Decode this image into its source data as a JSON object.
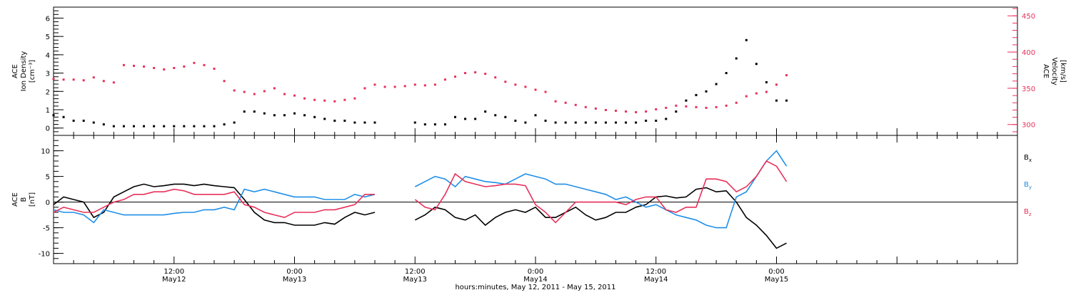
{
  "colors": {
    "black": "#000000",
    "density": "#000000",
    "velocity": "#e8305a",
    "bx": "#000000",
    "by": "#1f8fe8",
    "bz": "#e8305a",
    "axis": "#000000"
  },
  "x_axis": {
    "title": "hours:minutes, May 12, 2011 - May 15, 2011",
    "range_hours": [
      0,
      96
    ],
    "ticks": [
      {
        "h": 12,
        "time": "12:00",
        "day": "May12"
      },
      {
        "h": 24,
        "time": "0:00",
        "day": "May13"
      },
      {
        "h": 36,
        "time": "12:00",
        "day": "May13"
      },
      {
        "h": 48,
        "time": "0:00",
        "day": "May14"
      },
      {
        "h": 60,
        "time": "12:00",
        "day": "May14"
      },
      {
        "h": 72,
        "time": "0:00",
        "day": "May15"
      }
    ]
  },
  "chart_data": [
    {
      "type": "scatter",
      "panel": "top",
      "left_axis": {
        "label_lines": [
          "ACE",
          "Ion Density"
        ],
        "unit": "[cm⁻³]",
        "range": [
          -0.4,
          6.6
        ],
        "ticks": [
          0,
          1,
          2,
          3,
          4,
          5,
          6
        ]
      },
      "right_axis": {
        "label_lines": [
          "ACE",
          "Velocity"
        ],
        "unit": "[km/s]",
        "range": [
          285,
          462
        ],
        "ticks": [
          300,
          350,
          400,
          450
        ]
      },
      "series": [
        {
          "key": "density",
          "axis": "left",
          "x": [
            0,
            1,
            2,
            3,
            4,
            5,
            6,
            7,
            8,
            9,
            10,
            11,
            12,
            13,
            14,
            15,
            16,
            17,
            18,
            19,
            20,
            21,
            22,
            23,
            24,
            25,
            26,
            27,
            28,
            29,
            30,
            31,
            32,
            36,
            37,
            38,
            39,
            40,
            41,
            42,
            43,
            44,
            45,
            46,
            47,
            48,
            49,
            50,
            51,
            52,
            53,
            54,
            55,
            56,
            57,
            58,
            59,
            60,
            61,
            62,
            63,
            64,
            65,
            66,
            67,
            68,
            69,
            70,
            71,
            72,
            73
          ],
          "y": [
            0.7,
            0.6,
            0.4,
            0.4,
            0.3,
            0.2,
            0.1,
            0.1,
            0.1,
            0.1,
            0.1,
            0.1,
            0.1,
            0.1,
            0.1,
            0.1,
            0.1,
            0.2,
            0.3,
            0.9,
            0.9,
            0.8,
            0.7,
            0.7,
            0.8,
            0.7,
            0.6,
            0.5,
            0.4,
            0.4,
            0.3,
            0.3,
            0.3,
            0.3,
            0.2,
            0.2,
            0.2,
            0.6,
            0.5,
            0.5,
            0.9,
            0.7,
            0.6,
            0.4,
            0.3,
            0.7,
            0.4,
            0.3,
            0.3,
            0.3,
            0.3,
            0.3,
            0.3,
            0.3,
            0.3,
            0.3,
            0.4,
            0.4,
            0.5,
            0.9,
            1.5,
            1.8,
            2.0,
            2.4,
            3.0,
            3.8,
            4.8,
            3.5,
            2.5,
            1.5,
            1.5
          ]
        },
        {
          "key": "velocity",
          "axis": "right",
          "x": [
            0,
            1,
            2,
            3,
            4,
            5,
            6,
            7,
            8,
            9,
            10,
            11,
            12,
            13,
            14,
            15,
            16,
            17,
            18,
            19,
            20,
            21,
            22,
            23,
            24,
            25,
            26,
            27,
            28,
            29,
            30,
            31,
            32,
            33,
            34,
            35,
            36,
            37,
            38,
            39,
            40,
            41,
            42,
            43,
            44,
            45,
            46,
            47,
            48,
            49,
            50,
            51,
            52,
            53,
            54,
            55,
            56,
            57,
            58,
            59,
            60,
            61,
            62,
            63,
            64,
            65,
            66,
            67,
            68,
            69,
            70,
            71,
            72,
            73
          ],
          "y": [
            363,
            362,
            362,
            361,
            365,
            360,
            358,
            382,
            381,
            380,
            378,
            376,
            378,
            380,
            385,
            382,
            377,
            360,
            347,
            345,
            342,
            346,
            350,
            342,
            340,
            336,
            334,
            333,
            332,
            334,
            336,
            350,
            355,
            352,
            352,
            353,
            355,
            354,
            355,
            362,
            366,
            371,
            372,
            370,
            365,
            359,
            355,
            352,
            348,
            345,
            332,
            330,
            327,
            324,
            322,
            320,
            319,
            318,
            317,
            318,
            321,
            323,
            326,
            325,
            324,
            323,
            324,
            326,
            330,
            339,
            343,
            345,
            355,
            368
          ]
        }
      ]
    },
    {
      "type": "line",
      "panel": "bottom",
      "left_axis": {
        "label_lines": [
          "ACE",
          "B"
        ],
        "unit": "[nT]",
        "range": [
          -12,
          13
        ],
        "ticks": [
          -10,
          -5,
          0,
          5,
          10
        ]
      },
      "legend": [
        "Bx",
        "By",
        "Bz"
      ],
      "series": [
        {
          "key": "bx",
          "name": "Bx",
          "x": [
            0,
            1,
            2,
            3,
            4,
            5,
            6,
            7,
            8,
            9,
            10,
            11,
            12,
            13,
            14,
            15,
            16,
            17,
            18,
            19,
            20,
            21,
            22,
            23,
            24,
            25,
            26,
            27,
            28,
            29,
            30,
            31,
            32,
            36,
            37,
            38,
            39,
            40,
            41,
            42,
            43,
            44,
            45,
            46,
            47,
            48,
            49,
            50,
            51,
            52,
            53,
            54,
            55,
            56,
            57,
            58,
            59,
            60,
            61,
            62,
            63,
            64,
            65,
            66,
            67,
            68,
            69,
            70,
            71,
            72,
            73
          ],
          "y": [
            -0.5,
            1,
            0.5,
            0,
            -3,
            -2,
            1,
            2,
            3,
            3.5,
            3,
            3.2,
            3.5,
            3.5,
            3.2,
            3.5,
            3.2,
            3,
            2.8,
            0.5,
            -2,
            -3.5,
            -4,
            -4,
            -4.5,
            -4.5,
            -4.5,
            -4,
            -4.3,
            -3,
            -2,
            -2.5,
            -2,
            -3.5,
            -2.5,
            -1,
            -1.5,
            -3,
            -3.5,
            -2.5,
            -4.5,
            -3,
            -2,
            -1.5,
            -2,
            -1,
            -3,
            -3,
            -2,
            -1,
            -2.5,
            -3.5,
            -3,
            -2,
            -2,
            -1,
            -0.5,
            1,
            1.2,
            0.8,
            1,
            2.5,
            2.8,
            2,
            2.2,
            0,
            -3,
            -4.5,
            -6.5,
            -9,
            -8
          ]
        },
        {
          "key": "by",
          "name": "By",
          "x": [
            0,
            1,
            2,
            3,
            4,
            5,
            6,
            7,
            8,
            9,
            10,
            11,
            12,
            13,
            14,
            15,
            16,
            17,
            18,
            19,
            20,
            21,
            22,
            23,
            24,
            25,
            26,
            27,
            28,
            29,
            30,
            31,
            32,
            36,
            37,
            38,
            39,
            40,
            41,
            42,
            43,
            44,
            45,
            46,
            47,
            48,
            49,
            50,
            51,
            52,
            53,
            54,
            55,
            56,
            57,
            58,
            59,
            60,
            61,
            62,
            63,
            64,
            65,
            66,
            67,
            68,
            69,
            70,
            71,
            72,
            73
          ],
          "y": [
            -1.5,
            -2,
            -2,
            -2.5,
            -4,
            -1.5,
            -2,
            -2.5,
            -2.5,
            -2.5,
            -2.5,
            -2.5,
            -2.2,
            -2,
            -2,
            -1.5,
            -1.5,
            -1,
            -1.5,
            2.5,
            2,
            2.5,
            2,
            1.5,
            1,
            1,
            1,
            0.5,
            0.5,
            0.5,
            1.5,
            1,
            1.5,
            3,
            4,
            5,
            4.5,
            3,
            5,
            4.5,
            4,
            3.8,
            3.5,
            4.5,
            5.5,
            5,
            4.5,
            3.5,
            3.5,
            3,
            2.5,
            2,
            1.5,
            0.5,
            1,
            0,
            -1,
            -0.5,
            -1.5,
            -2.5,
            -3,
            -3.5,
            -4.5,
            -5,
            -5,
            1,
            2,
            5,
            8,
            10,
            7
          ]
        },
        {
          "key": "bz",
          "name": "Bz",
          "x": [
            0,
            1,
            2,
            3,
            4,
            5,
            6,
            7,
            8,
            9,
            10,
            11,
            12,
            13,
            14,
            15,
            16,
            17,
            18,
            19,
            20,
            21,
            22,
            23,
            24,
            25,
            26,
            27,
            28,
            29,
            30,
            31,
            32,
            36,
            37,
            38,
            39,
            40,
            41,
            42,
            43,
            44,
            45,
            46,
            47,
            48,
            49,
            50,
            51,
            52,
            53,
            54,
            55,
            56,
            57,
            58,
            59,
            60,
            61,
            62,
            63,
            64,
            65,
            66,
            67,
            68,
            69,
            70,
            71,
            72,
            73
          ],
          "y": [
            -2,
            -1,
            -1.5,
            -2,
            -2,
            -1,
            0,
            0.5,
            1.5,
            1.5,
            2,
            2,
            2.5,
            2.2,
            1.5,
            1.5,
            1.5,
            1.5,
            2,
            -0.5,
            -1,
            -2,
            -2.5,
            -3,
            -2,
            -2,
            -2,
            -1.5,
            -1.5,
            -1,
            -0.5,
            1.5,
            1.5,
            0.5,
            -1,
            -1.5,
            1.5,
            5.5,
            4,
            3.5,
            3,
            3.2,
            3.5,
            3.5,
            3.2,
            -0.5,
            -2,
            -4,
            -2,
            0,
            0,
            0,
            0,
            0,
            -0.5,
            0.5,
            1,
            1,
            -1.5,
            -2,
            -1,
            -1,
            4.5,
            4.5,
            4,
            2,
            3,
            5,
            8,
            7,
            4
          ]
        }
      ]
    }
  ]
}
